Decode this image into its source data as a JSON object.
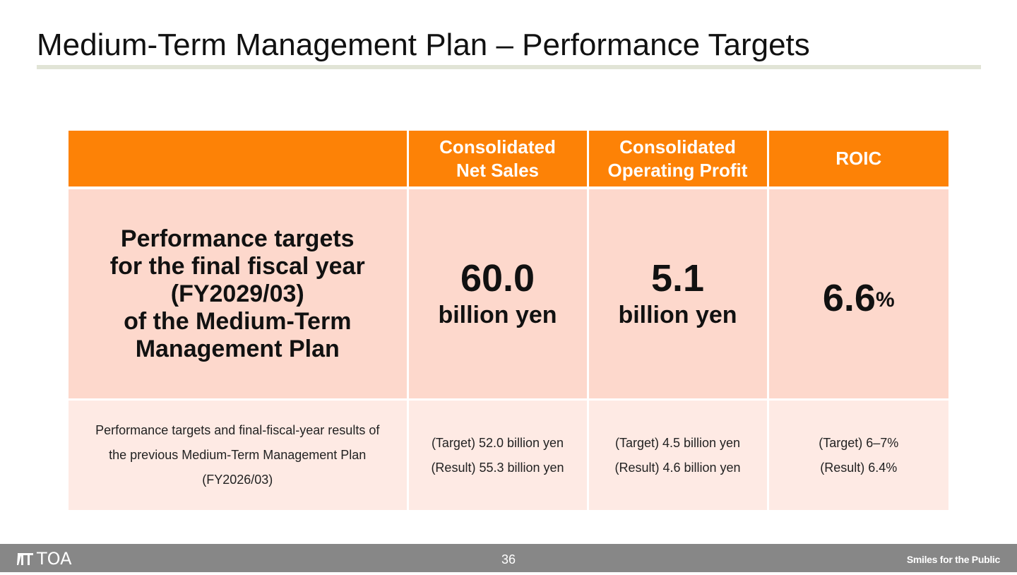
{
  "slide": {
    "title": "Medium-Term Management Plan ‒ Performance Targets"
  },
  "table": {
    "headers": {
      "corner": "",
      "col1": [
        "Consolidated",
        "Net Sales"
      ],
      "col2": [
        "Consolidated",
        "Operating Profit"
      ],
      "col3": "ROIC"
    },
    "targets_row": {
      "label": [
        "Performance targets",
        "for the final fiscal year",
        "(FY2029/03)",
        "of the Medium-Term",
        "Management Plan"
      ],
      "net_sales": {
        "value": "60.0",
        "unit": "billion yen"
      },
      "operating_profit": {
        "value": "5.1",
        "unit": "billion yen"
      },
      "roic": {
        "value": "6.6",
        "unit": "%"
      }
    },
    "previous_row": {
      "label": [
        "Performance targets and final-fiscal-year results of",
        "the previous Medium-Term Management Plan",
        "(FY2026/03)"
      ],
      "net_sales": [
        "(Target) 52.0 billion yen",
        "(Result) 55.3 billion yen"
      ],
      "operating_profit": [
        "(Target) 4.5 billion yen",
        "(Result) 4.6 billion yen"
      ],
      "roic": [
        "(Target) 6–7%",
        "(Result) 6.4%"
      ]
    }
  },
  "footer": {
    "logo_text": "TOA",
    "page_number": "36",
    "slogan": "Smiles for the Public"
  },
  "colors": {
    "header_orange": "#fd8206",
    "targets_bg": "#fdd8cc",
    "previous_bg": "#feeae4",
    "footer_gray": "#878787"
  }
}
